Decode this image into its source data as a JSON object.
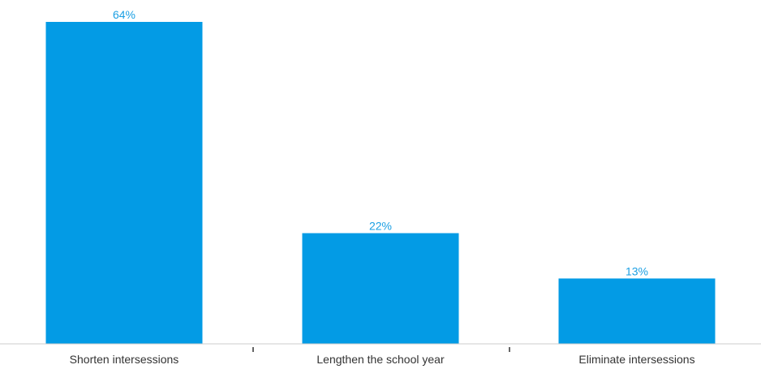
{
  "chart_data": {
    "type": "bar",
    "categories": [
      "Shorten intersessions",
      "Lengthen the school year",
      "Eliminate intersessions"
    ],
    "values": [
      64,
      22,
      13
    ],
    "value_labels": [
      "64%",
      "22%",
      "13%"
    ],
    "unit": "%",
    "ylim": [
      0,
      64
    ],
    "grid": false,
    "legend": "none",
    "title": "",
    "xlabel": "",
    "ylabel": ""
  },
  "colors": {
    "bar": "#039be5",
    "label": "#1a9fe3",
    "axis": "#cccccc",
    "tick": "#333333"
  }
}
